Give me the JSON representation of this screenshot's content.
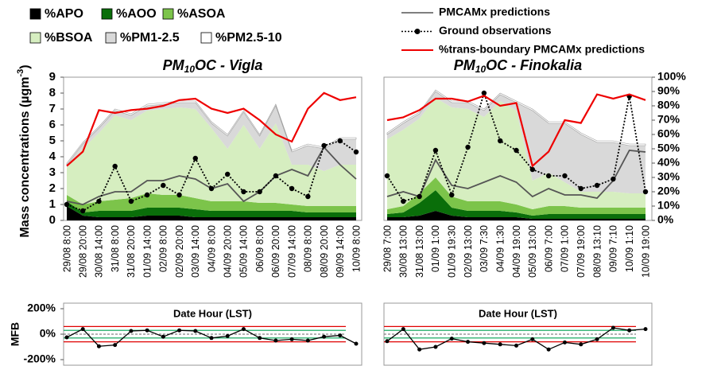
{
  "chart_data": [
    {
      "type": "stacked_area",
      "title": {
        "prefix": "PM",
        "sub": "10",
        "rest": "OC - Vigla"
      },
      "ylabel": {
        "text": "Mass concentrations (µgm",
        "sup": "-3",
        "end": ")"
      },
      "categories": [
        "29/08 8:00",
        "29/08 20:00",
        "30/08 14:00",
        "31/08 8:00",
        "31/08 20:00",
        "01/09 14:00",
        "02/09 8:00",
        "02/09 20:00",
        "03/09 14:00",
        "04/09 8:00",
        "04/09 20:00",
        "05/09 14:00",
        "06/09 8:00",
        "06/09 20:00",
        "07/09 14:00",
        "08/09 8:00",
        "08/09 20:00",
        "09/09 14:00",
        "10/09 8:00"
      ],
      "ylim": [
        0,
        9
      ],
      "yticks": [
        0,
        1,
        2,
        3,
        4,
        5,
        6,
        7,
        8,
        9
      ],
      "y2lim": [
        0,
        100
      ],
      "series": [
        {
          "name": "%APO",
          "color": "#000000",
          "stack": true,
          "values": [
            0.9,
            0.3,
            0.2,
            0.2,
            0.2,
            0.3,
            0.3,
            0.3,
            0.2,
            0.2,
            0.2,
            0.2,
            0.2,
            0.2,
            0.2,
            0.2,
            0.2,
            0.2,
            0.2
          ]
        },
        {
          "name": "%AOO",
          "color": "#0a6e0a",
          "stack": true,
          "values": [
            0.3,
            0.2,
            0.4,
            0.4,
            0.4,
            0.5,
            0.5,
            0.5,
            0.5,
            0.4,
            0.4,
            0.4,
            0.4,
            0.4,
            0.4,
            0.3,
            0.3,
            0.3,
            0.3
          ]
        },
        {
          "name": "%ASOA",
          "color": "#7cc44a",
          "stack": true,
          "values": [
            0.4,
            0.5,
            0.6,
            0.7,
            0.8,
            0.9,
            0.8,
            0.8,
            0.7,
            0.6,
            0.6,
            0.6,
            0.5,
            0.5,
            0.4,
            0.4,
            0.4,
            0.4,
            0.4
          ]
        },
        {
          "name": "%BSOA",
          "color": "#d6eec0",
          "stack": true,
          "values": [
            1.7,
            3.5,
            4.3,
            5.3,
            4.9,
            5.2,
            5.4,
            5.5,
            5.6,
            4.6,
            3.3,
            4.8,
            3.4,
            5.0,
            2.5,
            2.6,
            2.2,
            2.6,
            2.6
          ]
        },
        {
          "name": "%PM1-2.5",
          "color": "#d9d9d9",
          "stack": true,
          "values": [
            0.2,
            0.3,
            0.3,
            0.3,
            0.3,
            0.3,
            0.3,
            0.3,
            0.4,
            0.3,
            0.8,
            0.8,
            0.8,
            1.1,
            0.8,
            1.2,
            1.4,
            1.6,
            1.6
          ]
        },
        {
          "name": "%PM2.5-10",
          "color": "#ffffff",
          "stack": true,
          "values": [
            0.1,
            0.1,
            0.1,
            0.1,
            0.1,
            0.1,
            0.1,
            0.1,
            0.1,
            0.1,
            0.1,
            0.1,
            0.1,
            0.1,
            0.1,
            0.1,
            0.1,
            0.1,
            0.1
          ]
        },
        {
          "name": "PMCAMx predictions",
          "color": "#555555",
          "style": "solid",
          "values": [
            1.2,
            1.0,
            1.5,
            1.8,
            1.8,
            2.5,
            2.5,
            2.8,
            2.6,
            2.0,
            2.3,
            1.2,
            1.8,
            2.8,
            3.2,
            2.8,
            4.6,
            3.5,
            2.6
          ]
        },
        {
          "name": "Ground observations",
          "color": "#000000",
          "style": "dotted",
          "values": [
            1.0,
            0.6,
            1.2,
            3.4,
            1.2,
            1.6,
            2.2,
            1.6,
            3.9,
            2.0,
            2.9,
            1.8,
            1.8,
            2.8,
            2.0,
            1.5,
            4.7,
            5.0,
            4.3
          ]
        },
        {
          "name": "%trans-boundary PMCAMx predictions",
          "color": "#ee0000",
          "style": "solid",
          "axis": "y2",
          "values": [
            38,
            48,
            77,
            75,
            77,
            78,
            80,
            84,
            85,
            78,
            75,
            78,
            70,
            60,
            55,
            78,
            89,
            84,
            86
          ]
        }
      ],
      "mfb": {
        "title": "Date Hour (LST)",
        "ylabel": "MFB",
        "ylim": [
          -200,
          200
        ],
        "yticks": [
          {
            "value": -200,
            "label": "-200%"
          },
          {
            "value": 0,
            "label": "0%"
          },
          {
            "value": 200,
            "label": "200%"
          }
        ],
        "color": "#000000",
        "values": [
          -25,
          40,
          -95,
          -85,
          25,
          30,
          -20,
          30,
          25,
          -30,
          -15,
          40,
          -30,
          -50,
          -40,
          -50,
          -20,
          -10,
          -75
        ],
        "reference_lines": [
          {
            "value": 60,
            "color": "#e00000"
          },
          {
            "value": -60,
            "color": "#e00000"
          },
          {
            "value": 30,
            "color": "#00a050"
          },
          {
            "value": -30,
            "color": "#00a050"
          },
          {
            "value": 0,
            "color": "#666666",
            "dash": true
          }
        ]
      }
    },
    {
      "type": "stacked_area",
      "title": {
        "prefix": "PM",
        "sub": "10",
        "rest": "OC - Finokalia"
      },
      "categories": [
        "29/08 7:00",
        "30/08 13:00",
        "31/08 13:00",
        "01/09 1:00",
        "01/09 19:30",
        "02/09 13:00",
        "03/09 7:30",
        "04/09 1:30",
        "04/09 19:00",
        "05/09 13:00",
        "06/09 7:00",
        "07/09 1:00",
        "07/09 19:00",
        "08/09 13:10",
        "09/09 7:10",
        "10/09 1:10",
        "10/09 19:00"
      ],
      "ylim": [
        0,
        9
      ],
      "y2lim": [
        0,
        100
      ],
      "y2ticks": [
        {
          "value": 0,
          "label": "0%"
        },
        {
          "value": 10,
          "label": "10%"
        },
        {
          "value": 20,
          "label": "20%"
        },
        {
          "value": 30,
          "label": "30%"
        },
        {
          "value": 40,
          "label": "40%"
        },
        {
          "value": 50,
          "label": "50%"
        },
        {
          "value": 60,
          "label": "60%"
        },
        {
          "value": 70,
          "label": "70%"
        },
        {
          "value": 80,
          "label": "80%"
        },
        {
          "value": 90,
          "label": "90%"
        },
        {
          "value": 100,
          "label": "100%"
        }
      ],
      "series": [
        {
          "name": "%APO",
          "color": "#000000",
          "stack": true,
          "values": [
            0.2,
            0.2,
            0.3,
            0.6,
            0.3,
            0.2,
            0.2,
            0.2,
            0.2,
            0.1,
            0.1,
            0.1,
            0.1,
            0.1,
            0.1,
            0.1,
            0.1
          ]
        },
        {
          "name": "%AOO",
          "color": "#0a6e0a",
          "stack": true,
          "values": [
            0.2,
            0.3,
            0.8,
            1.3,
            0.5,
            0.4,
            0.4,
            0.4,
            0.3,
            0.2,
            0.3,
            0.3,
            0.3,
            0.3,
            0.3,
            0.3,
            0.3
          ]
        },
        {
          "name": "%ASOA",
          "color": "#7cc44a",
          "stack": true,
          "values": [
            0.3,
            0.4,
            0.6,
            0.8,
            0.7,
            0.6,
            0.6,
            0.6,
            0.5,
            0.4,
            0.5,
            0.5,
            0.4,
            0.4,
            0.4,
            0.4,
            0.4
          ]
        },
        {
          "name": "%BSOA",
          "color": "#d6eec0",
          "stack": true,
          "values": [
            4.4,
            4.8,
            4.7,
            5.0,
            5.6,
            5.8,
            5.3,
            6.3,
            5.9,
            1.8,
            2.1,
            1.5,
            1.0,
            1.0,
            1.0,
            0.9,
            0.9
          ]
        },
        {
          "name": "%PM1-2.5",
          "color": "#d9d9d9",
          "stack": true,
          "values": [
            0.3,
            0.4,
            0.3,
            0.4,
            0.3,
            0.4,
            0.4,
            0.4,
            0.5,
            4.4,
            3.1,
            3.7,
            3.6,
            3.1,
            3.1,
            3.0,
            3.0
          ]
        },
        {
          "name": "%PM2.5-10",
          "color": "#ffffff",
          "stack": true,
          "values": [
            0.1,
            0.1,
            0.1,
            0.1,
            0.1,
            0.1,
            0.1,
            0.1,
            0.1,
            0.1,
            0.1,
            0.1,
            0.1,
            0.1,
            0.1,
            0.1,
            0.1
          ]
        },
        {
          "name": "PMCAMx predictions",
          "color": "#555555",
          "style": "solid",
          "values": [
            1.5,
            1.8,
            1.5,
            3.8,
            2.2,
            2.0,
            2.4,
            2.8,
            2.4,
            1.5,
            2.0,
            1.6,
            1.6,
            1.4,
            2.5,
            4.4,
            4.3
          ]
        },
        {
          "name": "Ground observations",
          "color": "#000000",
          "style": "dotted",
          "values": [
            2.8,
            1.2,
            1.5,
            4.4,
            1.6,
            4.6,
            8.0,
            5.0,
            4.4,
            3.2,
            2.8,
            2.8,
            2.0,
            2.2,
            2.6,
            7.8,
            1.8
          ]
        },
        {
          "name": "%trans-boundary PMCAMx predictions",
          "color": "#ee0000",
          "style": "solid",
          "axis": "y2",
          "values": [
            70,
            72,
            77,
            85,
            85,
            83,
            87,
            80,
            82,
            38,
            48,
            70,
            68,
            88,
            85,
            88,
            84
          ]
        }
      ],
      "mfb": {
        "title": "Date Hour (LST)",
        "ylim": [
          -200,
          200
        ],
        "color": "#000000",
        "values": [
          -55,
          40,
          -120,
          -100,
          -35,
          -60,
          -70,
          -80,
          -90,
          -40,
          -120,
          -65,
          -80,
          -40,
          50,
          30,
          40
        ],
        "reference_lines": [
          {
            "value": 60,
            "color": "#e00000"
          },
          {
            "value": -60,
            "color": "#e00000"
          },
          {
            "value": 30,
            "color": "#00a050"
          },
          {
            "value": -30,
            "color": "#00a050"
          },
          {
            "value": 0,
            "color": "#666666",
            "dash": true
          }
        ]
      }
    }
  ]
}
